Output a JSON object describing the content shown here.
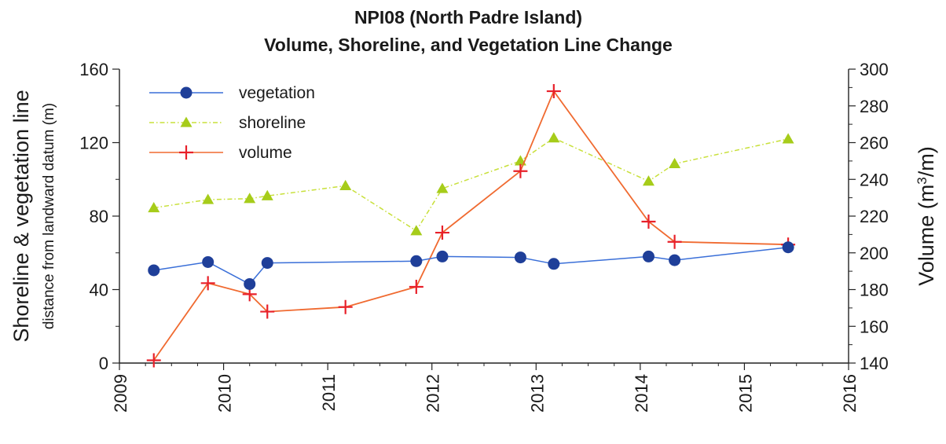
{
  "chart_data": {
    "type": "line",
    "title_line1": "NPI08 (North Padre Island)",
    "title_line2": "Volume, Shoreline, and Vegetation Line Change",
    "ylabel_main": "Shoreline & vegetation line",
    "ylabel_sub": "distance from landward datum (m)",
    "y2label_prefix": "Volume (m",
    "y2label_sup": "3",
    "y2label_suffix": "/m)",
    "xlim": [
      2009,
      2016
    ],
    "xticks": [
      "2009",
      "2010",
      "2011",
      "2012",
      "2013",
      "2014",
      "2015",
      "2016"
    ],
    "ylim": [
      0,
      160
    ],
    "yticks": [
      "0",
      "40",
      "80",
      "120",
      "160"
    ],
    "y2lim": [
      140,
      300
    ],
    "y2ticks": [
      "140",
      "160",
      "180",
      "200",
      "220",
      "240",
      "260",
      "280",
      "300"
    ],
    "legend_position": "top-left",
    "series": [
      {
        "name": "vegetation",
        "axis": "left",
        "marker": "circle",
        "color": "#3a6fd8",
        "marker_color": "#1f3f99",
        "points": [
          [
            2009.33,
            50.5
          ],
          [
            2009.85,
            55
          ],
          [
            2010.25,
            43
          ],
          [
            2010.42,
            54.5
          ],
          [
            2011.85,
            55.5
          ],
          [
            2012.1,
            58
          ],
          [
            2012.85,
            57.5
          ],
          [
            2013.17,
            54
          ],
          [
            2014.08,
            58
          ],
          [
            2014.33,
            56
          ],
          [
            2015.42,
            63
          ]
        ]
      },
      {
        "name": "shoreline",
        "axis": "left",
        "marker": "triangle",
        "color": "#c8e03a",
        "marker_color": "#a6cc1a",
        "points": [
          [
            2009.33,
            84.5
          ],
          [
            2009.85,
            89
          ],
          [
            2010.25,
            89.5
          ],
          [
            2010.42,
            91
          ],
          [
            2011.17,
            96.5
          ],
          [
            2011.85,
            72
          ],
          [
            2012.1,
            95
          ],
          [
            2012.85,
            110
          ],
          [
            2013.17,
            122.5
          ],
          [
            2014.08,
            99
          ],
          [
            2014.33,
            108.5
          ],
          [
            2015.42,
            122
          ]
        ]
      },
      {
        "name": "volume",
        "axis": "right",
        "marker": "plus",
        "color": "#f06a30",
        "marker_color": "#e8202a",
        "points": [
          [
            2009.33,
            141.5
          ],
          [
            2009.85,
            183.5
          ],
          [
            2010.25,
            177.5
          ],
          [
            2010.42,
            168
          ],
          [
            2011.17,
            170.5
          ],
          [
            2011.85,
            181.5
          ],
          [
            2012.1,
            211
          ],
          [
            2012.85,
            244.5
          ],
          [
            2013.17,
            288
          ],
          [
            2014.08,
            217
          ],
          [
            2014.33,
            206
          ],
          [
            2015.42,
            204.5
          ]
        ]
      }
    ]
  }
}
